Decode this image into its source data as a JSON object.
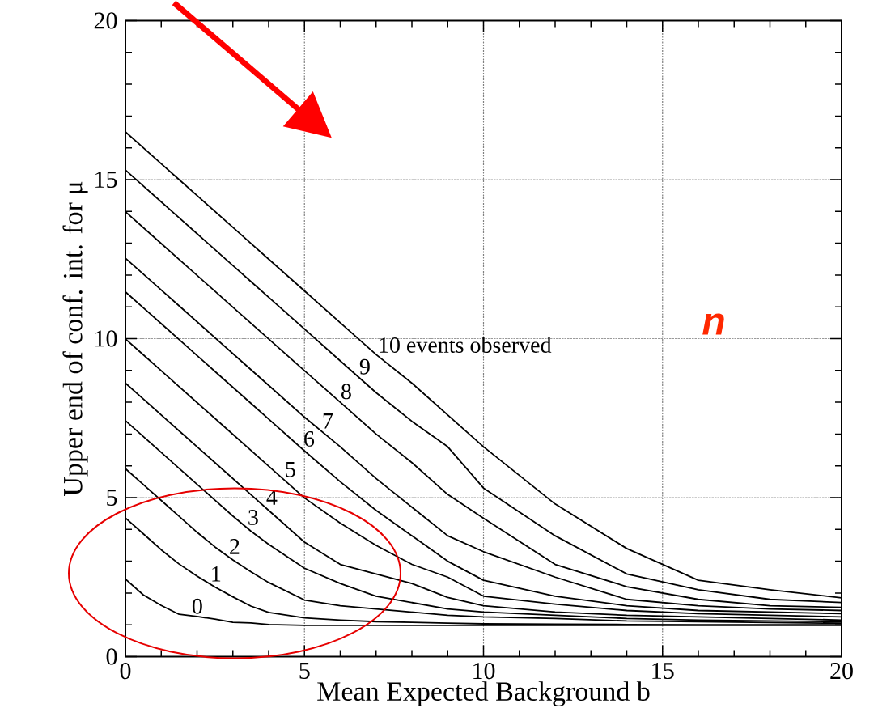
{
  "chart_data": {
    "type": "line",
    "xlabel": "Mean Expected Background b",
    "ylabel": "Upper end of conf. int. for μ",
    "x": [
      0,
      0.5,
      1,
      1.5,
      2,
      2.5,
      3,
      3.5,
      4,
      5,
      6,
      7,
      8,
      9,
      10,
      12,
      14,
      16,
      18,
      20
    ],
    "series": [
      {
        "name": "0",
        "color": "#000000",
        "values": [
          2.44,
          1.94,
          1.61,
          1.33,
          1.26,
          1.18,
          1.08,
          1.06,
          1.01,
          0.98,
          0.98,
          0.98,
          0.98,
          0.98,
          0.98,
          0.98,
          0.98,
          0.98,
          0.98,
          0.98
        ]
      },
      {
        "name": "1",
        "color": "#000000",
        "values": [
          4.36,
          3.86,
          3.36,
          2.91,
          2.53,
          2.19,
          1.88,
          1.59,
          1.39,
          1.22,
          1.15,
          1.1,
          1.08,
          1.05,
          1.03,
          1.02,
          1.01,
          1.0,
          1.0,
          1.0
        ]
      },
      {
        "name": "2",
        "color": "#000000",
        "values": [
          5.91,
          5.41,
          4.91,
          4.41,
          3.91,
          3.45,
          3.04,
          2.67,
          2.33,
          1.78,
          1.6,
          1.5,
          1.4,
          1.3,
          1.25,
          1.2,
          1.12,
          1.1,
          1.07,
          1.05
        ]
      },
      {
        "name": "3",
        "color": "#000000",
        "values": [
          7.42,
          6.92,
          6.42,
          5.92,
          5.42,
          4.92,
          4.42,
          3.95,
          3.53,
          2.78,
          2.3,
          1.9,
          1.7,
          1.5,
          1.4,
          1.3,
          1.2,
          1.15,
          1.12,
          1.1
        ]
      },
      {
        "name": "4",
        "color": "#000000",
        "values": [
          8.6,
          8.1,
          7.6,
          7.1,
          6.6,
          6.1,
          5.6,
          5.1,
          4.6,
          3.6,
          2.9,
          2.6,
          2.3,
          1.86,
          1.6,
          1.4,
          1.3,
          1.25,
          1.2,
          1.15
        ]
      },
      {
        "name": "5",
        "color": "#000000",
        "values": [
          9.99,
          9.49,
          8.99,
          8.49,
          7.99,
          7.49,
          6.99,
          6.49,
          5.99,
          4.99,
          4.2,
          3.5,
          2.9,
          2.5,
          1.9,
          1.65,
          1.45,
          1.35,
          1.3,
          1.25
        ]
      },
      {
        "name": "6",
        "color": "#000000",
        "values": [
          11.47,
          10.97,
          10.47,
          9.97,
          9.47,
          8.97,
          8.47,
          7.97,
          7.47,
          6.47,
          5.5,
          4.6,
          3.8,
          3.0,
          2.4,
          1.9,
          1.6,
          1.45,
          1.4,
          1.35
        ]
      },
      {
        "name": "7",
        "color": "#000000",
        "values": [
          12.53,
          12.03,
          11.53,
          11.03,
          10.53,
          10.03,
          9.53,
          9.03,
          8.53,
          7.53,
          6.6,
          5.6,
          4.7,
          3.8,
          3.3,
          2.5,
          1.8,
          1.6,
          1.5,
          1.45
        ]
      },
      {
        "name": "8",
        "color": "#000000",
        "values": [
          13.99,
          13.49,
          12.99,
          12.49,
          11.99,
          11.49,
          10.99,
          10.49,
          9.99,
          8.99,
          8.0,
          7.0,
          6.1,
          5.1,
          4.35,
          2.9,
          2.2,
          1.8,
          1.6,
          1.55
        ]
      },
      {
        "name": "9",
        "color": "#000000",
        "values": [
          15.3,
          14.8,
          14.3,
          13.8,
          13.3,
          12.8,
          12.3,
          11.8,
          11.3,
          10.3,
          9.3,
          8.3,
          7.4,
          6.6,
          5.3,
          3.8,
          2.6,
          2.1,
          1.8,
          1.7
        ]
      },
      {
        "name": "10 events observed",
        "color": "#000000",
        "values": [
          16.5,
          16.0,
          15.5,
          15.0,
          14.5,
          14.0,
          13.5,
          13.0,
          12.5,
          11.5,
          10.5,
          9.5,
          8.6,
          7.6,
          6.6,
          4.8,
          3.4,
          2.4,
          2.1,
          1.85
        ]
      }
    ],
    "xlim": [
      0,
      20
    ],
    "ylim": [
      0,
      20
    ],
    "xticks": [
      0,
      5,
      10,
      15,
      20
    ],
    "yticks": [
      0,
      5,
      10,
      15,
      20
    ],
    "grid": true,
    "line_style": "solid",
    "marker": "none",
    "annotations": [
      "n"
    ]
  }
}
